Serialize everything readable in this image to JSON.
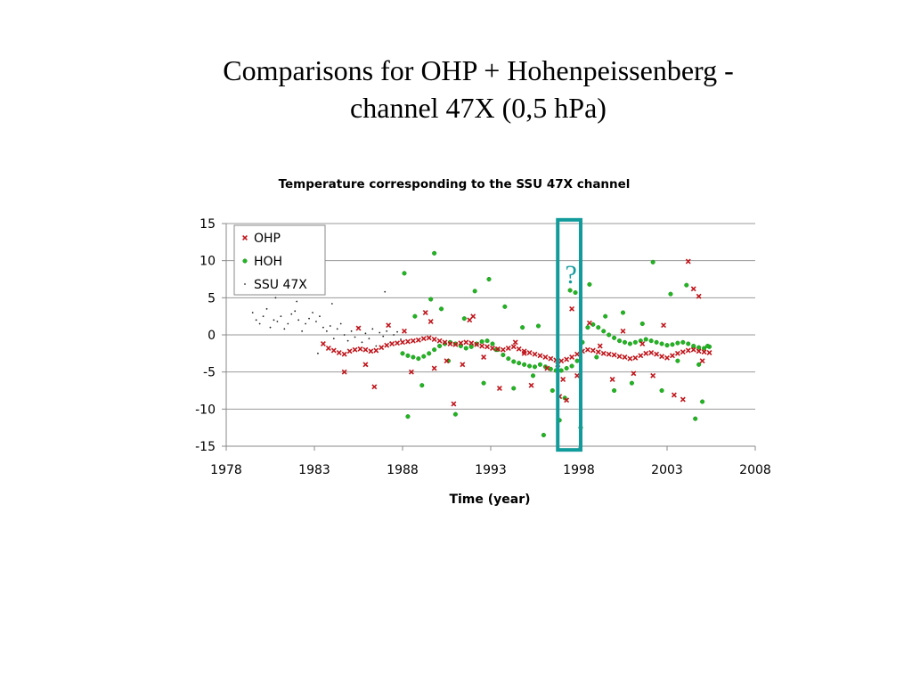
{
  "slide": {
    "title_line1": "Comparisons for OHP + Hohenpeissenberg -",
    "title_line2": "channel 47X (0,5 hPa)"
  },
  "chart_data": {
    "type": "scatter",
    "title": "Temperature corresponding to the SSU 47X channel",
    "xlabel": "Time (year)",
    "ylabel": "",
    "xlim": [
      1978,
      2008
    ],
    "ylim": [
      -15,
      15
    ],
    "xticks": [
      1978,
      1983,
      1988,
      1993,
      1998,
      2003,
      2008
    ],
    "yticks": [
      15,
      10,
      5,
      0,
      -5,
      -10,
      -15
    ],
    "grid": "horizontal",
    "legend": {
      "placement": "top-left"
    },
    "annotation": {
      "text": "?",
      "x_range": [
        1996.8,
        1998.1
      ],
      "y_range": [
        -15.5,
        15.5
      ],
      "color": "#119b9b"
    },
    "series": [
      {
        "name": "OHP",
        "marker": "x",
        "color": "#c0161c",
        "x": [
          1983.5,
          1983.8,
          1984.1,
          1984.4,
          1984.7,
          1985.0,
          1985.3,
          1985.6,
          1985.9,
          1986.2,
          1986.5,
          1986.8,
          1987.1,
          1987.4,
          1987.7,
          1988.0,
          1988.3,
          1988.6,
          1988.9,
          1989.2,
          1989.5,
          1989.8,
          1990.1,
          1990.4,
          1990.7,
          1991.0,
          1991.3,
          1991.6,
          1991.9,
          1992.2,
          1992.5,
          1992.8,
          1993.1,
          1993.4,
          1993.7,
          1994.0,
          1994.3,
          1994.6,
          1994.9,
          1995.2,
          1995.5,
          1995.8,
          1996.1,
          1996.4,
          1996.7,
          1997.0,
          1997.3,
          1997.6,
          1997.9,
          1998.2,
          1998.5,
          1998.8,
          1999.1,
          1999.4,
          1999.7,
          2000.0,
          2000.3,
          2000.6,
          2000.9,
          2001.2,
          2001.5,
          2001.8,
          2002.1,
          2002.4,
          2002.7,
          2003.0,
          2003.3,
          2003.6,
          2003.9,
          2004.2,
          2004.5,
          2004.8,
          2005.1,
          2005.4,
          1984.7,
          1985.5,
          1985.9,
          1986.4,
          1987.2,
          1988.5,
          1989.3,
          1989.6,
          1989.8,
          1990.5,
          1990.9,
          1991.4,
          1991.8,
          1992.6,
          1993.5,
          1994.4,
          1995.3,
          1996.2,
          1996.9,
          1997.3,
          1997.6,
          1997.9,
          1998.6,
          1999.2,
          1999.9,
          2000.5,
          2001.1,
          2001.6,
          2002.2,
          2002.8,
          2003.4,
          2003.9,
          2004.2,
          2004.5,
          2004.8,
          2005.0,
          1996.8,
          1997.1,
          1988.1,
          1992.0,
          1994.9
        ],
        "y": [
          -1.2,
          -1.8,
          -2.1,
          -2.4,
          -2.6,
          -2.2,
          -2.0,
          -1.9,
          -2.0,
          -2.2,
          -2.1,
          -1.7,
          -1.4,
          -1.2,
          -1.1,
          -1.0,
          -0.9,
          -0.8,
          -0.7,
          -0.5,
          -0.4,
          -0.6,
          -0.8,
          -1.0,
          -1.2,
          -1.3,
          -1.1,
          -1.0,
          -1.1,
          -1.3,
          -1.5,
          -1.6,
          -1.8,
          -1.9,
          -2.0,
          -1.8,
          -1.6,
          -1.9,
          -2.2,
          -2.4,
          -2.6,
          -2.8,
          -3.0,
          -3.2,
          -3.4,
          -3.5,
          -3.3,
          -3.0,
          -2.6,
          -2.2,
          -2.0,
          -2.1,
          -2.3,
          -2.5,
          -2.6,
          -2.7,
          -2.9,
          -3.0,
          -3.2,
          -3.1,
          -2.8,
          -2.5,
          -2.4,
          -2.6,
          -2.9,
          -3.1,
          -2.8,
          -2.5,
          -2.3,
          -2.1,
          -2.0,
          -2.2,
          -2.3,
          -2.4,
          -5.0,
          0.9,
          -4.0,
          -7.0,
          1.3,
          -5.0,
          3.0,
          1.8,
          -4.5,
          -3.5,
          -9.3,
          -4.0,
          2.0,
          -3.0,
          -7.2,
          -1.0,
          -6.8,
          -4.5,
          -8.3,
          -8.8,
          3.5,
          -5.5,
          1.6,
          -1.5,
          -6.0,
          0.5,
          -5.2,
          -1.2,
          -5.5,
          1.3,
          -8.1,
          -8.7,
          9.9,
          6.2,
          5.2,
          -3.5,
          -4.0,
          -6.0,
          0.5,
          2.5,
          -2.5
        ]
      },
      {
        "name": "HOH",
        "marker": "circle",
        "color": "#22b422",
        "x": [
          1988.0,
          1988.3,
          1988.6,
          1988.9,
          1989.2,
          1989.5,
          1989.8,
          1990.1,
          1990.4,
          1990.7,
          1991.0,
          1991.3,
          1991.6,
          1991.9,
          1992.2,
          1992.5,
          1992.8,
          1993.1,
          1993.4,
          1993.7,
          1994.0,
          1994.3,
          1994.6,
          1994.9,
          1995.2,
          1995.5,
          1995.8,
          1996.1,
          1996.4,
          1996.7,
          1997.0,
          1997.3,
          1997.6,
          1997.9,
          1998.2,
          1998.5,
          1998.8,
          1999.1,
          1999.4,
          1999.7,
          2000.0,
          2000.3,
          2000.6,
          2000.9,
          2001.2,
          2001.5,
          2001.8,
          2002.1,
          2002.4,
          2002.7,
          2003.0,
          2003.3,
          2003.6,
          2003.9,
          2004.2,
          2004.5,
          2004.8,
          2005.1,
          2005.4,
          1988.1,
          1988.3,
          1988.7,
          1989.1,
          1989.6,
          1989.8,
          1990.2,
          1990.6,
          1991.0,
          1991.5,
          1992.1,
          1992.6,
          1992.9,
          1993.3,
          1993.8,
          1994.3,
          1994.8,
          1995.4,
          1995.7,
          1996.0,
          1996.5,
          1996.9,
          1997.2,
          1997.5,
          1997.8,
          1998.1,
          1998.6,
          1999.0,
          1999.5,
          2000.0,
          2000.5,
          2001.0,
          2001.6,
          2002.2,
          2002.7,
          2003.2,
          2003.6,
          2004.1,
          2004.6,
          2004.8,
          2005.0,
          2005.3
        ],
        "y": [
          -2.5,
          -2.8,
          -3.0,
          -3.2,
          -2.9,
          -2.5,
          -2.0,
          -1.5,
          -1.2,
          -1.0,
          -1.2,
          -1.5,
          -1.8,
          -1.6,
          -1.2,
          -0.9,
          -0.8,
          -1.2,
          -2.0,
          -2.7,
          -3.2,
          -3.6,
          -3.8,
          -4.0,
          -4.2,
          -4.3,
          -4.0,
          -4.3,
          -4.6,
          -4.8,
          -4.8,
          -4.5,
          -4.2,
          -3.5,
          -1.0,
          1.0,
          1.4,
          1.0,
          0.5,
          0.0,
          -0.4,
          -0.8,
          -1.0,
          -1.2,
          -1.0,
          -0.8,
          -0.6,
          -0.8,
          -1.0,
          -1.2,
          -1.4,
          -1.3,
          -1.1,
          -1.0,
          -1.2,
          -1.5,
          -1.7,
          -1.8,
          -1.6,
          8.3,
          -11.0,
          2.5,
          -6.8,
          4.8,
          11.0,
          3.5,
          -3.5,
          -10.7,
          2.2,
          5.9,
          -6.5,
          7.5,
          -2.0,
          3.8,
          -7.2,
          1.0,
          -5.5,
          1.2,
          -13.5,
          -7.5,
          -11.5,
          -8.5,
          6.0,
          5.7,
          -12.5,
          6.8,
          -3.0,
          2.5,
          -7.5,
          3.0,
          -6.5,
          1.5,
          9.8,
          -7.5,
          5.5,
          -3.5,
          6.7,
          -11.3,
          -4.0,
          -9.0,
          -1.5
        ]
      },
      {
        "name": "SSU 47X",
        "marker": "dot",
        "color": "#222222",
        "x": [
          1979.5,
          1979.7,
          1979.9,
          1980.1,
          1980.3,
          1980.5,
          1980.7,
          1980.9,
          1981.1,
          1981.3,
          1981.5,
          1981.7,
          1981.9,
          1982.1,
          1982.3,
          1982.5,
          1982.7,
          1982.9,
          1983.1,
          1983.3,
          1983.5,
          1983.7,
          1983.9,
          1984.1,
          1984.3,
          1984.5,
          1984.7,
          1984.9,
          1985.1,
          1985.3,
          1985.5,
          1985.7,
          1985.9,
          1986.1,
          1986.3,
          1986.5,
          1986.7,
          1986.9,
          1987.1,
          1987.3,
          1987.5,
          1987.7,
          1987.9,
          1980.8,
          1982.0,
          1983.2,
          1984.0,
          1986.0,
          1987.0
        ],
        "y": [
          3.0,
          2.0,
          1.5,
          2.5,
          3.5,
          1.0,
          2.0,
          1.8,
          2.5,
          0.8,
          1.5,
          2.8,
          3.2,
          2.0,
          0.5,
          1.5,
          2.2,
          3.0,
          1.8,
          2.5,
          1.0,
          0.5,
          1.2,
          -0.5,
          0.8,
          1.5,
          0.0,
          -0.8,
          0.5,
          -0.3,
          1.0,
          -1.0,
          0.2,
          -0.5,
          0.8,
          -1.5,
          0.3,
          -0.2,
          0.5,
          -1.0,
          0.0,
          0.4,
          -0.6,
          5.0,
          4.5,
          -2.5,
          4.2,
          -4.2,
          5.8
        ]
      }
    ]
  }
}
